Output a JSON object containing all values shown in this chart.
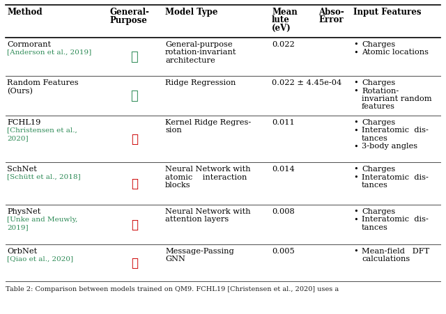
{
  "caption": "Table 2: Comparison between models trained on QM9. FCHL19 [Christensen et al., 2020] uses a",
  "ref_color": "#2e8b57",
  "check_color": "#2e8b57",
  "cross_color": "#cc0000",
  "bg_color": "#ffffff",
  "header_fontsize": 8.5,
  "body_fontsize": 8.2,
  "ref_fontsize": 7.5,
  "caption_fontsize": 7.0,
  "rows": [
    {
      "method": "Cormorant",
      "method_ref": "[Anderson et al., 2019]",
      "general_purpose": true,
      "model_type": [
        "General-purpose",
        "rotation-invariant",
        "architecture"
      ],
      "mean_abs_error": "0.022",
      "input_features": [
        [
          "Charges"
        ],
        [
          "Atomic locations"
        ]
      ]
    },
    {
      "method": "Random Features\n(Ours)",
      "method_ref": "",
      "general_purpose": true,
      "model_type": [
        "Ridge Regression"
      ],
      "mean_abs_error": "0.022 ± 4.45e-04",
      "input_features": [
        [
          "Charges"
        ],
        [
          "Rotation-",
          "invariant random",
          "features"
        ]
      ]
    },
    {
      "method": "FCHL19",
      "method_ref": "[Christensen et al.,\n2020]",
      "general_purpose": false,
      "model_type": [
        "Kernel Ridge Regres-",
        "sion"
      ],
      "mean_abs_error": "0.011",
      "input_features": [
        [
          "Charges"
        ],
        [
          "Interatomic  dis-",
          "tances"
        ],
        [
          "3-body angles"
        ]
      ]
    },
    {
      "method": "SchNet",
      "method_ref": "[Schütt et al., 2018]",
      "general_purpose": false,
      "model_type": [
        "Neural Network with",
        "atomic    interaction",
        "blocks"
      ],
      "mean_abs_error": "0.014",
      "input_features": [
        [
          "Charges"
        ],
        [
          "Interatomic  dis-",
          "tances"
        ]
      ]
    },
    {
      "method": "PhysNet",
      "method_ref": "[Unke and Meuwly,\n2019]",
      "general_purpose": false,
      "model_type": [
        "Neural Network with",
        "attention layers"
      ],
      "mean_abs_error": "0.008",
      "input_features": [
        [
          "Charges"
        ],
        [
          "Interatomic  dis-",
          "tances"
        ]
      ]
    },
    {
      "method": "OrbNet",
      "method_ref": "[Qiao et al., 2020]",
      "general_purpose": false,
      "model_type": [
        "Message-Passing",
        "GNN"
      ],
      "mean_abs_error": "0.005",
      "input_features": [
        [
          "Mean-field   DFT",
          "calculations"
        ]
      ]
    }
  ]
}
